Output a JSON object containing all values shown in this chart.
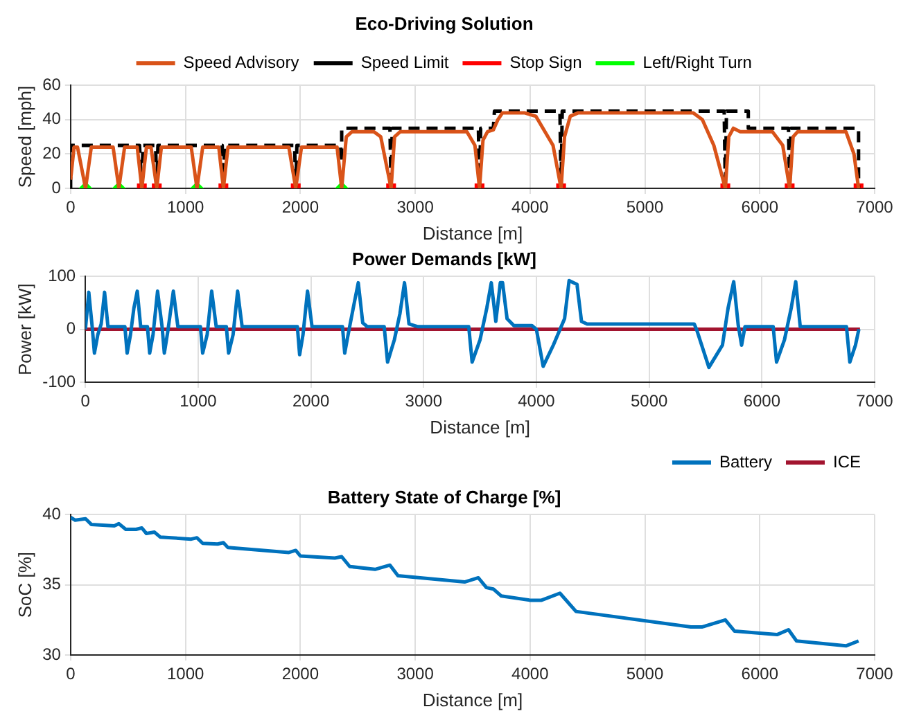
{
  "chart_data": [
    {
      "type": "line",
      "title": "Eco-Driving Solution",
      "xlabel": "Distance [m]",
      "ylabel": "Speed [mph]",
      "xlim": [
        0,
        7000
      ],
      "xticks": [
        0,
        1000,
        2000,
        3000,
        4000,
        5000,
        6000,
        7000
      ],
      "ylim": [
        0,
        60
      ],
      "yticks": [
        0,
        20,
        40,
        60
      ],
      "grid": true,
      "legend": "top",
      "series": [
        {
          "name": "Speed Advisory",
          "color": "#d95319",
          "line_style": "solid",
          "marker": "none",
          "x": [
            0,
            30,
            60,
            130,
            180,
            370,
            420,
            470,
            580,
            620,
            660,
            700,
            750,
            790,
            1050,
            1100,
            1150,
            1290,
            1330,
            1370,
            1900,
            1960,
            2010,
            2320,
            2360,
            2400,
            2450,
            2640,
            2700,
            2790,
            2820,
            2870,
            3450,
            3520,
            3560,
            3590,
            3630,
            3680,
            3720,
            3760,
            3950,
            4050,
            4200,
            4270,
            4300,
            4350,
            4420,
            5420,
            5500,
            5600,
            5700,
            5730,
            5770,
            5830,
            6110,
            6200,
            6260,
            6290,
            6330,
            6750,
            6820,
            6860
          ],
          "values": [
            5,
            24,
            24,
            0,
            24,
            24,
            0,
            24,
            24,
            0,
            24,
            24,
            0,
            24,
            24,
            0,
            24,
            24,
            0,
            24,
            24,
            0,
            24,
            24,
            0,
            30,
            33,
            33,
            30,
            0,
            30,
            33,
            33,
            25,
            0,
            28,
            33,
            34,
            40,
            44,
            44,
            42,
            25,
            0,
            30,
            42,
            44,
            44,
            40,
            25,
            0,
            30,
            35,
            33,
            33,
            25,
            0,
            30,
            33,
            33,
            20,
            0
          ]
        },
        {
          "name": "Speed Limit",
          "color": "#000000",
          "line_style": "dashed",
          "marker": "none",
          "x": [
            0,
            0,
            600,
            620,
            630,
            740,
            750,
            760,
            1320,
            1330,
            1340,
            1950,
            1960,
            1970,
            2350,
            2360,
            2360,
            2780,
            2790,
            2800,
            3550,
            3560,
            3570,
            3680,
            3690,
            4260,
            4270,
            4280,
            5690,
            5700,
            5710,
            5900,
            5900,
            6250,
            6260,
            6270,
            6860,
            6860
          ],
          "values": [
            0,
            25,
            25,
            0,
            25,
            25,
            0,
            25,
            25,
            0,
            25,
            25,
            0,
            25,
            25,
            15,
            35,
            35,
            0,
            35,
            35,
            0,
            35,
            35,
            45,
            45,
            0,
            45,
            45,
            0,
            45,
            45,
            35,
            35,
            0,
            35,
            35,
            0
          ]
        },
        {
          "name": "Stop Sign",
          "type": "scatter",
          "color": "#ff0000",
          "marker": "square",
          "x": [
            620,
            750,
            1330,
            1960,
            2790,
            3560,
            4270,
            5700,
            6260,
            6860
          ],
          "values": [
            0,
            0,
            0,
            0,
            0,
            0,
            0,
            0,
            0,
            0
          ]
        },
        {
          "name": "Left/Right Turn",
          "type": "scatter",
          "color": "#00ff00",
          "marker": "diamond",
          "x": [
            130,
            420,
            1100,
            2360
          ],
          "values": [
            0,
            0,
            0,
            0
          ]
        }
      ]
    },
    {
      "type": "line",
      "title": "Power Demands [kW]",
      "xlabel": "Distance [m]",
      "ylabel": "Power [kW]",
      "xlim": [
        0,
        7000
      ],
      "xticks": [
        0,
        1000,
        2000,
        3000,
        4000,
        5000,
        6000,
        7000
      ],
      "ylim": [
        -100,
        100
      ],
      "yticks": [
        -100,
        0,
        100
      ],
      "grid": true,
      "legend": "bottom right",
      "series": [
        {
          "name": "Battery",
          "color": "#0072bd",
          "line_style": "solid",
          "marker": "none",
          "x": [
            0,
            30,
            60,
            80,
            110,
            140,
            170,
            200,
            350,
            370,
            400,
            430,
            460,
            490,
            550,
            570,
            600,
            640,
            680,
            700,
            730,
            780,
            820,
            1020,
            1040,
            1080,
            1120,
            1160,
            1250,
            1270,
            1310,
            1350,
            1390,
            1880,
            1900,
            1930,
            1970,
            2010,
            2280,
            2300,
            2330,
            2380,
            2420,
            2460,
            2500,
            2650,
            2680,
            2740,
            2790,
            2830,
            2870,
            2950,
            3400,
            3430,
            3500,
            3560,
            3600,
            3640,
            3680,
            3700,
            3740,
            3800,
            3960,
            4000,
            4060,
            4150,
            4250,
            4290,
            4360,
            4400,
            4450,
            5400,
            5420,
            5530,
            5650,
            5700,
            5750,
            5790,
            5820,
            5850,
            6100,
            6130,
            6200,
            6260,
            6300,
            6340,
            6750,
            6780,
            6830,
            6860
          ],
          "values": [
            0,
            70,
            5,
            -45,
            -10,
            10,
            70,
            5,
            5,
            -45,
            -10,
            40,
            72,
            5,
            5,
            -45,
            -10,
            72,
            5,
            -45,
            -5,
            72,
            5,
            5,
            -45,
            -10,
            72,
            5,
            5,
            -45,
            -10,
            72,
            5,
            5,
            -48,
            -10,
            72,
            5,
            5,
            -45,
            -10,
            45,
            88,
            12,
            5,
            5,
            -62,
            -20,
            30,
            88,
            10,
            5,
            5,
            -62,
            -20,
            40,
            88,
            15,
            88,
            88,
            20,
            7,
            7,
            0,
            -70,
            -30,
            20,
            92,
            85,
            15,
            10,
            10,
            0,
            -72,
            -30,
            40,
            90,
            8,
            -30,
            5,
            5,
            -62,
            -20,
            40,
            90,
            5,
            5,
            -62,
            -30,
            0
          ]
        },
        {
          "name": "ICE",
          "color": "#a2142f",
          "line_style": "solid",
          "marker": "none",
          "x": [
            0,
            6870
          ],
          "values": [
            0,
            0
          ]
        }
      ]
    },
    {
      "type": "line",
      "title": "Battery State of Charge [%]",
      "xlabel": "Distance [m]",
      "ylabel": "SoC [%]",
      "xlim": [
        0,
        7000
      ],
      "xticks": [
        0,
        1000,
        2000,
        3000,
        4000,
        5000,
        6000,
        7000
      ],
      "ylim": [
        30,
        40
      ],
      "yticks": [
        30,
        35,
        40
      ],
      "grid": true,
      "series": [
        {
          "color": "#0072bd",
          "line_style": "solid",
          "marker": "none",
          "x": [
            0,
            40,
            130,
            180,
            380,
            420,
            480,
            570,
            620,
            660,
            730,
            780,
            1050,
            1100,
            1150,
            1280,
            1330,
            1370,
            1900,
            1960,
            2000,
            2300,
            2360,
            2430,
            2650,
            2780,
            2850,
            3430,
            3550,
            3620,
            3680,
            3750,
            4000,
            4100,
            4260,
            4400,
            5400,
            5500,
            5700,
            5780,
            6150,
            6250,
            6320,
            6750,
            6860
          ],
          "values": [
            39.8,
            39.6,
            39.7,
            39.3,
            39.2,
            39.35,
            38.95,
            38.95,
            39.05,
            38.65,
            38.75,
            38.4,
            38.25,
            38.35,
            37.95,
            37.9,
            38.0,
            37.65,
            37.3,
            37.45,
            37.05,
            36.9,
            37.0,
            36.3,
            36.1,
            36.4,
            35.65,
            35.2,
            35.5,
            34.8,
            34.7,
            34.2,
            33.9,
            33.9,
            34.4,
            33.1,
            32.0,
            32.0,
            32.5,
            31.7,
            31.45,
            31.8,
            31.0,
            30.65,
            31.0
          ]
        }
      ]
    }
  ]
}
